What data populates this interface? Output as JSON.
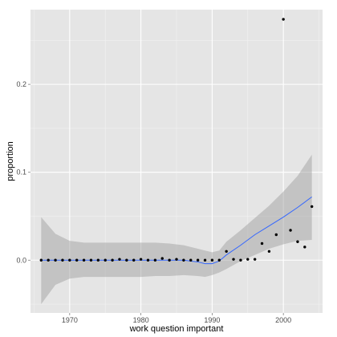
{
  "chart_data": {
    "type": "scatter",
    "title": "",
    "xlabel": "work question important",
    "ylabel": "proportion",
    "xlim": [
      1964.5,
      2005.5
    ],
    "ylim": [
      -0.06,
      0.285
    ],
    "x_ticks": [
      1970,
      1980,
      1990,
      2000
    ],
    "x_tick_labels": [
      "1970",
      "1980",
      "1990",
      "2000"
    ],
    "y_ticks": [
      0.0,
      0.1,
      0.2
    ],
    "y_tick_labels": [
      "0.0",
      "0.1",
      "0.2"
    ],
    "grid": true,
    "legend": "none",
    "colors": {
      "panel_background": "#e5e5e5",
      "grid_major": "#ffffff",
      "grid_minor": "#f2f2f2",
      "points": "#000000",
      "smooth_line": "#3366ff",
      "confidence_band": "#999999"
    },
    "points": {
      "x": [
        1966,
        1967,
        1968,
        1969,
        1970,
        1971,
        1972,
        1973,
        1974,
        1975,
        1976,
        1977,
        1978,
        1979,
        1980,
        1981,
        1982,
        1983,
        1984,
        1985,
        1986,
        1987,
        1988,
        1989,
        1990,
        1991,
        1992,
        1993,
        1994,
        1995,
        1996,
        1997,
        1998,
        1999,
        2000,
        2001,
        2002,
        2003,
        2004
      ],
      "y": [
        0.0,
        0.0,
        0.0,
        0.0,
        0.0,
        0.0,
        0.0,
        0.0,
        0.0,
        0.0,
        0.0,
        0.001,
        0.0,
        0.0,
        0.001,
        0.0,
        0.0,
        0.002,
        0.0,
        0.001,
        0.0,
        0.0,
        0.0,
        0.0,
        0.0,
        0.0,
        0.01,
        0.001,
        0.0,
        0.001,
        0.001,
        0.019,
        0.01,
        0.029,
        0.274,
        0.034,
        0.021,
        0.015,
        0.061
      ]
    },
    "smooth": {
      "x": [
        1966,
        1968,
        1970,
        1972,
        1974,
        1976,
        1978,
        1980,
        1982,
        1984,
        1986,
        1988,
        1989,
        1990,
        1991,
        1992,
        1994,
        1996,
        1998,
        2000,
        2002,
        2004
      ],
      "y": [
        0.0,
        0.0,
        0.0,
        0.0,
        0.0,
        0.0,
        0.0,
        0.0,
        0.0,
        0.0,
        0.0,
        -0.002,
        -0.004,
        -0.004,
        -0.001,
        0.006,
        0.017,
        0.029,
        0.039,
        0.049,
        0.06,
        0.072
      ],
      "lower": [
        -0.05,
        -0.028,
        -0.021,
        -0.019,
        -0.019,
        -0.019,
        -0.019,
        -0.019,
        -0.018,
        -0.018,
        -0.017,
        -0.018,
        -0.019,
        -0.017,
        -0.014,
        -0.01,
        -0.001,
        0.006,
        0.013,
        0.018,
        0.022,
        0.023
      ],
      "upper": [
        0.049,
        0.03,
        0.022,
        0.02,
        0.02,
        0.02,
        0.02,
        0.02,
        0.02,
        0.019,
        0.017,
        0.013,
        0.011,
        0.009,
        0.011,
        0.021,
        0.034,
        0.048,
        0.062,
        0.078,
        0.096,
        0.12
      ]
    }
  }
}
